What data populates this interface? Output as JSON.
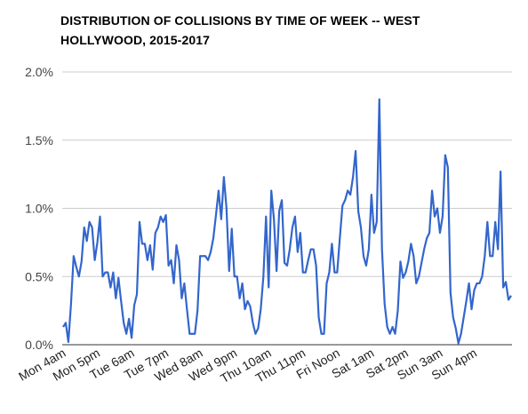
{
  "chart_data": {
    "type": "line",
    "title": "DISTRIBUTION OF COLLISIONS BY TIME OF WEEK -- WEST HOLLYWOOD, 2015-2017",
    "xlabel": "",
    "ylabel": "",
    "ylim": [
      0,
      2.0
    ],
    "y_ticks": [
      "0.0%",
      "0.5%",
      "1.0%",
      "1.5%",
      "2.0%"
    ],
    "x_ticks": [
      "Mon 4am",
      "Mon 5pm",
      "Tue 6am",
      "Tue 7pm",
      "Wed 8am",
      "Wed 9pm",
      "Thu 10am",
      "Thu 11pm",
      "Fri Noon",
      "Sat 1am",
      "Sat 2pm",
      "Sun 3am",
      "Sun 4pm"
    ],
    "grid": true,
    "legend": "none",
    "line_color": "#3366cc",
    "series": [
      {
        "values": [
          0.13,
          0.16,
          0.02,
          0.3,
          0.65,
          0.57,
          0.5,
          0.61,
          0.86,
          0.76,
          0.9,
          0.86,
          0.62,
          0.75,
          0.94,
          0.5,
          0.53,
          0.53,
          0.42,
          0.53,
          0.34,
          0.49,
          0.32,
          0.16,
          0.08,
          0.19,
          0.05,
          0.29,
          0.37,
          0.9,
          0.74,
          0.74,
          0.62,
          0.73,
          0.55,
          0.82,
          0.86,
          0.94,
          0.9,
          0.95,
          0.58,
          0.62,
          0.45,
          0.73,
          0.62,
          0.34,
          0.45,
          0.26,
          0.08,
          0.08,
          0.08,
          0.25,
          0.65,
          0.65,
          0.65,
          0.62,
          0.68,
          0.78,
          0.95,
          1.13,
          0.92,
          1.23,
          1.0,
          0.54,
          0.85,
          0.5,
          0.5,
          0.34,
          0.45,
          0.26,
          0.32,
          0.28,
          0.16,
          0.08,
          0.12,
          0.26,
          0.5,
          0.94,
          0.42,
          1.13,
          0.92,
          0.54,
          0.98,
          1.06,
          0.6,
          0.58,
          0.7,
          0.86,
          0.94,
          0.68,
          0.82,
          0.53,
          0.53,
          0.62,
          0.7,
          0.7,
          0.58,
          0.2,
          0.08,
          0.08,
          0.45,
          0.53,
          0.74,
          0.53,
          0.53,
          0.78,
          1.02,
          1.06,
          1.13,
          1.1,
          1.23,
          1.42,
          0.98,
          0.86,
          0.65,
          0.58,
          0.7,
          1.1,
          0.82,
          0.9,
          1.8,
          0.7,
          0.3,
          0.13,
          0.08,
          0.13,
          0.08,
          0.25,
          0.61,
          0.49,
          0.53,
          0.61,
          0.74,
          0.65,
          0.45,
          0.5,
          0.6,
          0.7,
          0.78,
          0.82,
          1.13,
          0.94,
          1.0,
          0.82,
          0.94,
          1.39,
          1.3,
          0.38,
          0.2,
          0.12,
          0.01,
          0.08,
          0.2,
          0.32,
          0.45,
          0.26,
          0.4,
          0.45,
          0.45,
          0.5,
          0.65,
          0.9,
          0.65,
          0.65,
          0.9,
          0.7,
          1.27,
          0.42,
          0.46,
          0.33,
          0.36
        ]
      }
    ]
  }
}
